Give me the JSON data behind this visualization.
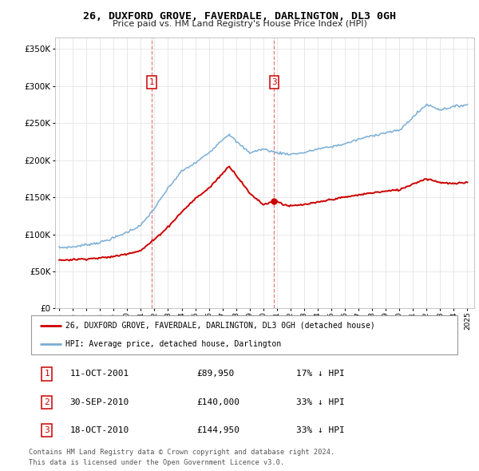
{
  "title": "26, DUXFORD GROVE, FAVERDALE, DARLINGTON, DL3 0GH",
  "subtitle": "Price paid vs. HM Land Registry's House Price Index (HPI)",
  "ytick_vals": [
    0,
    50000,
    100000,
    150000,
    200000,
    250000,
    300000,
    350000
  ],
  "ylim": [
    0,
    365000
  ],
  "xlim_start": 1994.7,
  "xlim_end": 2025.5,
  "legend_line1": "26, DUXFORD GROVE, FAVERDALE, DARLINGTON, DL3 0GH (detached house)",
  "legend_line2": "HPI: Average price, detached house, Darlington",
  "red_color": "#cc0000",
  "blue_color": "#7aaed6",
  "vline_color": "#dd6666",
  "transaction1": {
    "num": 1,
    "date": "11-OCT-2001",
    "price": "£89,950",
    "pct": "17% ↓ HPI",
    "year": 2001.78,
    "value": 89950
  },
  "transaction2": {
    "num": 2,
    "date": "30-SEP-2010",
    "price": "£140,000",
    "pct": "33% ↓ HPI",
    "year": 2010.75,
    "value": 140000
  },
  "transaction3": {
    "num": 3,
    "date": "18-OCT-2010",
    "price": "£144,950",
    "pct": "33% ↓ HPI",
    "year": 2010.8,
    "value": 144950
  },
  "footnote1": "Contains HM Land Registry data © Crown copyright and database right 2024.",
  "footnote2": "This data is licensed under the Open Government Licence v3.0.",
  "hpi_keypoints": [
    [
      1995.0,
      82000
    ],
    [
      1996.0,
      83000
    ],
    [
      1997.0,
      86000
    ],
    [
      1998.0,
      89000
    ],
    [
      1999.0,
      95000
    ],
    [
      2000.0,
      103000
    ],
    [
      2001.0,
      112000
    ],
    [
      2002.0,
      135000
    ],
    [
      2003.0,
      162000
    ],
    [
      2004.0,
      185000
    ],
    [
      2005.0,
      196000
    ],
    [
      2006.0,
      210000
    ],
    [
      2007.0,
      228000
    ],
    [
      2007.5,
      235000
    ],
    [
      2008.0,
      225000
    ],
    [
      2009.0,
      210000
    ],
    [
      2010.0,
      215000
    ],
    [
      2011.0,
      210000
    ],
    [
      2012.0,
      208000
    ],
    [
      2013.0,
      210000
    ],
    [
      2014.0,
      215000
    ],
    [
      2015.0,
      218000
    ],
    [
      2016.0,
      222000
    ],
    [
      2017.0,
      228000
    ],
    [
      2018.0,
      233000
    ],
    [
      2019.0,
      237000
    ],
    [
      2020.0,
      240000
    ],
    [
      2021.0,
      258000
    ],
    [
      2022.0,
      275000
    ],
    [
      2023.0,
      268000
    ],
    [
      2024.0,
      272000
    ],
    [
      2025.0,
      275000
    ]
  ],
  "house_keypoints": [
    [
      1995.0,
      65000
    ],
    [
      1996.0,
      66000
    ],
    [
      1997.0,
      67000
    ],
    [
      1998.0,
      68000
    ],
    [
      1999.0,
      70000
    ],
    [
      2000.0,
      74000
    ],
    [
      2001.0,
      78000
    ],
    [
      2001.78,
      89950
    ],
    [
      2002.0,
      93000
    ],
    [
      2003.0,
      110000
    ],
    [
      2004.0,
      130000
    ],
    [
      2005.0,
      148000
    ],
    [
      2006.0,
      162000
    ],
    [
      2007.0,
      182000
    ],
    [
      2007.5,
      192000
    ],
    [
      2008.0,
      180000
    ],
    [
      2008.5,
      168000
    ],
    [
      2009.0,
      155000
    ],
    [
      2009.5,
      148000
    ],
    [
      2010.0,
      140000
    ],
    [
      2010.78,
      144950
    ],
    [
      2011.0,
      145000
    ],
    [
      2011.5,
      140000
    ],
    [
      2012.0,
      138000
    ],
    [
      2013.0,
      140000
    ],
    [
      2014.0,
      143000
    ],
    [
      2015.0,
      147000
    ],
    [
      2016.0,
      150000
    ],
    [
      2017.0,
      153000
    ],
    [
      2018.0,
      156000
    ],
    [
      2019.0,
      158000
    ],
    [
      2020.0,
      160000
    ],
    [
      2021.0,
      168000
    ],
    [
      2022.0,
      175000
    ],
    [
      2023.0,
      170000
    ],
    [
      2024.0,
      168000
    ],
    [
      2025.0,
      170000
    ]
  ]
}
